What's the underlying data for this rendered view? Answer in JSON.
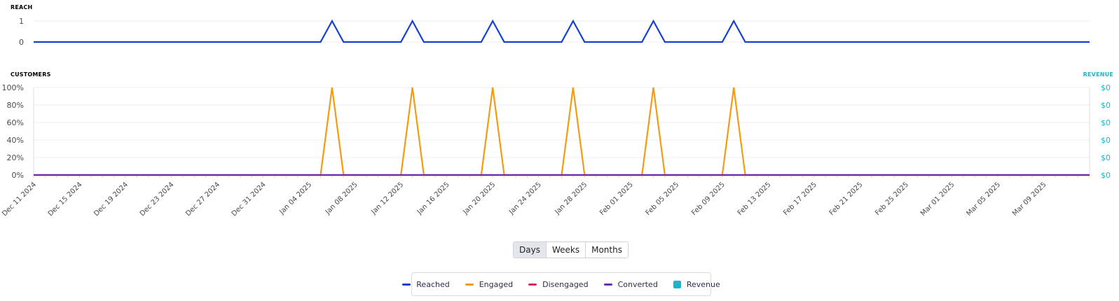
{
  "reach_title": "REACH",
  "customers_title": "CUSTOMERS",
  "revenue_title": "REVENUE",
  "colors": {
    "reached": "#1440d6",
    "engaged": "#f39c12",
    "disengaged": "#e0245e",
    "converted": "#6a2fb0",
    "revenue": "#17b6cc"
  },
  "period_buttons": [
    "Days",
    "Weeks",
    "Months"
  ],
  "active_period": "Days",
  "legend": [
    "Reached",
    "Engaged",
    "Disengaged",
    "Converted",
    "Revenue"
  ],
  "chart_data": [
    {
      "type": "line",
      "title": "REACH",
      "x_start": "2024-12-11",
      "x_end": "2025-03-13",
      "y_ticks": [
        "0",
        "1"
      ],
      "ylim": [
        0,
        1
      ],
      "grid": true,
      "series": [
        {
          "name": "Reached",
          "points": [
            {
              "x": "2024-12-11",
              "y": 0
            },
            {
              "x": "2025-01-05",
              "y": 0
            },
            {
              "x": "2025-01-06",
              "y": 1
            },
            {
              "x": "2025-01-07",
              "y": 0
            },
            {
              "x": "2025-01-12",
              "y": 0
            },
            {
              "x": "2025-01-13",
              "y": 1
            },
            {
              "x": "2025-01-14",
              "y": 0
            },
            {
              "x": "2025-01-19",
              "y": 0
            },
            {
              "x": "2025-01-20",
              "y": 1
            },
            {
              "x": "2025-01-21",
              "y": 0
            },
            {
              "x": "2025-01-26",
              "y": 0
            },
            {
              "x": "2025-01-27",
              "y": 1
            },
            {
              "x": "2025-01-28",
              "y": 0
            },
            {
              "x": "2025-02-02",
              "y": 0
            },
            {
              "x": "2025-02-03",
              "y": 1
            },
            {
              "x": "2025-02-04",
              "y": 0
            },
            {
              "x": "2025-02-09",
              "y": 0
            },
            {
              "x": "2025-02-10",
              "y": 1
            },
            {
              "x": "2025-02-11",
              "y": 0
            },
            {
              "x": "2025-03-13",
              "y": 0
            }
          ]
        }
      ]
    },
    {
      "type": "line",
      "title": "CUSTOMERS",
      "y2_title": "REVENUE",
      "x_ticks": [
        "Dec 11 2024",
        "Dec 15 2024",
        "Dec 19 2024",
        "Dec 23 2024",
        "Dec 27 2024",
        "Dec 31 2024",
        "Jan 04 2025",
        "Jan 08 2025",
        "Jan 12 2025",
        "Jan 16 2025",
        "Jan 20 2025",
        "Jan 24 2025",
        "Jan 28 2025",
        "Feb 01 2025",
        "Feb 05 2025",
        "Feb 09 2025",
        "Feb 13 2025",
        "Feb 17 2025",
        "Feb 21 2025",
        "Feb 25 2025",
        "Mar 01 2025",
        "Mar 05 2025",
        "Mar 09 2025"
      ],
      "x_start": "2024-12-11",
      "x_end": "2025-03-13",
      "y_ticks": [
        "0%",
        "20%",
        "40%",
        "60%",
        "80%",
        "100%"
      ],
      "ylim": [
        0,
        100
      ],
      "y2_ticks": [
        "$0",
        "$0",
        "$0",
        "$0",
        "$0",
        "$0"
      ],
      "grid": true,
      "legend_position": "bottom",
      "series": [
        {
          "name": "Engaged",
          "points": [
            {
              "x": "2024-12-11",
              "y": 0
            },
            {
              "x": "2025-01-05",
              "y": 0
            },
            {
              "x": "2025-01-06",
              "y": 100
            },
            {
              "x": "2025-01-07",
              "y": 0
            },
            {
              "x": "2025-01-12",
              "y": 0
            },
            {
              "x": "2025-01-13",
              "y": 100
            },
            {
              "x": "2025-01-14",
              "y": 0
            },
            {
              "x": "2025-01-19",
              "y": 0
            },
            {
              "x": "2025-01-20",
              "y": 100
            },
            {
              "x": "2025-01-21",
              "y": 0
            },
            {
              "x": "2025-01-26",
              "y": 0
            },
            {
              "x": "2025-01-27",
              "y": 100
            },
            {
              "x": "2025-01-28",
              "y": 0
            },
            {
              "x": "2025-02-02",
              "y": 0
            },
            {
              "x": "2025-02-03",
              "y": 100
            },
            {
              "x": "2025-02-04",
              "y": 0
            },
            {
              "x": "2025-02-09",
              "y": 0
            },
            {
              "x": "2025-02-10",
              "y": 100
            },
            {
              "x": "2025-02-11",
              "y": 0
            },
            {
              "x": "2025-03-13",
              "y": 0
            }
          ]
        },
        {
          "name": "Disengaged",
          "points": [
            {
              "x": "2024-12-11",
              "y": 0
            },
            {
              "x": "2025-03-13",
              "y": 0
            }
          ]
        },
        {
          "name": "Converted",
          "points": [
            {
              "x": "2024-12-11",
              "y": 0
            },
            {
              "x": "2025-03-13",
              "y": 0
            }
          ]
        }
      ]
    }
  ]
}
